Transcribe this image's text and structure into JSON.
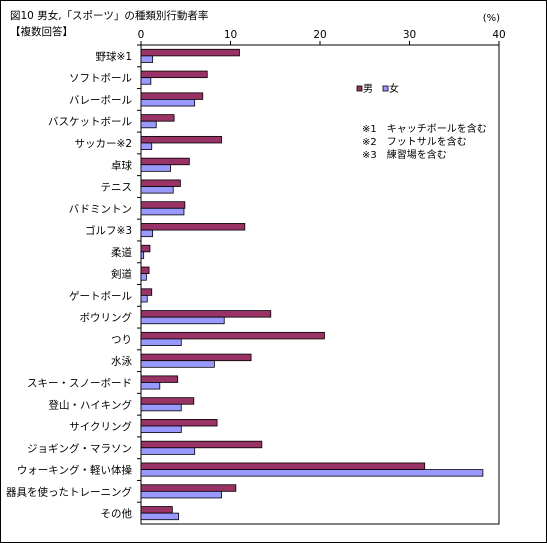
{
  "chart_data": {
    "type": "bar",
    "orientation": "horizontal",
    "title": "図10 男女,「スポーツ」の種類別行動者率",
    "subtitle": "【複数回答】",
    "unit_label": "(%)",
    "xlim": [
      0,
      40
    ],
    "xticks": [
      0,
      10,
      20,
      30,
      40
    ],
    "grid": false,
    "legend_position": "top-right",
    "categories": [
      "野球※1",
      "ソフトボール",
      "バレーボール",
      "バスケットボール",
      "サッカー※2",
      "卓球",
      "テニス",
      "バドミントン",
      "ゴルフ※3",
      "柔道",
      "剣道",
      "ゲートボール",
      "ボウリング",
      "つり",
      "水泳",
      "スキー・スノーボード",
      "登山・ハイキング",
      "サイクリング",
      "ジョギング・マラソン",
      "ウォーキング・軽い体操",
      "器具を使ったトレーニング",
      "その他"
    ],
    "series": [
      {
        "name": "男",
        "color": "#993366",
        "values": [
          11.0,
          7.4,
          6.9,
          3.7,
          9.0,
          5.4,
          4.4,
          4.9,
          11.6,
          1.0,
          0.9,
          1.2,
          14.5,
          20.5,
          12.3,
          4.1,
          5.9,
          8.5,
          13.5,
          31.7,
          10.6,
          3.5
        ]
      },
      {
        "name": "女",
        "color": "#9999FF",
        "values": [
          1.3,
          1.1,
          6.0,
          1.7,
          1.2,
          3.3,
          3.6,
          4.8,
          1.3,
          0.3,
          0.6,
          0.7,
          9.3,
          4.5,
          8.2,
          2.1,
          4.5,
          4.5,
          6.0,
          38.2,
          9.0,
          4.2
        ]
      }
    ],
    "annotations": [
      "※1　キャッチボールを含む",
      "※2　フットサルを含む",
      "※3　練習場を含む"
    ]
  },
  "colors": {
    "border": "#000000",
    "plot_background": "#ffffff"
  }
}
